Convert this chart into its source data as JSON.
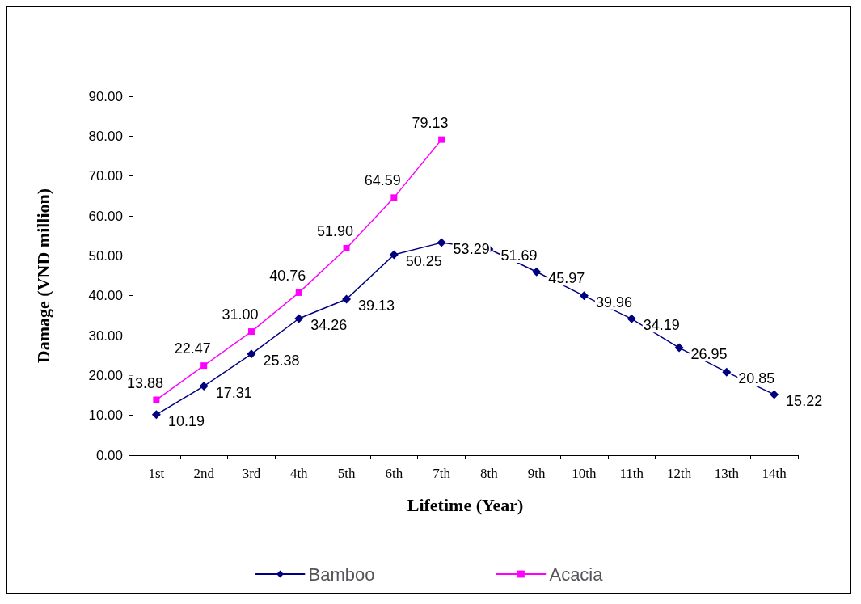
{
  "chart_data": {
    "type": "line",
    "xlabel": "Lifetime (Year)",
    "ylabel": "Damage (VND million)",
    "categories": [
      "1st",
      "2nd",
      "3rd",
      "4th",
      "5th",
      "6th",
      "7th",
      "8th",
      "9th",
      "10th",
      "11th",
      "12th",
      "13th",
      "14th"
    ],
    "series": [
      {
        "name": "Bamboo",
        "color": "#000080",
        "marker": "diamond",
        "values": [
          10.19,
          17.31,
          25.38,
          34.26,
          39.13,
          50.25,
          53.29,
          51.69,
          45.97,
          39.96,
          34.19,
          26.95,
          20.85,
          15.22
        ],
        "value_labels": [
          "10.19",
          "17.31",
          "25.38",
          "34.26",
          "39.13",
          "50.25",
          "53.29",
          "51.69",
          "45.97",
          "39.96",
          "34.19",
          "26.95",
          "20.85",
          "15.22"
        ]
      },
      {
        "name": "Acacia",
        "color": "#ff00ff",
        "marker": "square",
        "values": [
          13.88,
          22.47,
          31.0,
          40.76,
          51.9,
          64.59,
          79.13,
          null,
          null,
          null,
          null,
          null,
          null,
          null
        ],
        "value_labels": [
          "13.88",
          "22.47",
          "31.00",
          "40.76",
          "51.90",
          "64.59",
          "79.13",
          null,
          null,
          null,
          null,
          null,
          null,
          null
        ]
      }
    ],
    "ylim": [
      0,
      90
    ],
    "yticks": [
      {
        "value": 0,
        "label": "0.00"
      },
      {
        "value": 10,
        "label": "10.00"
      },
      {
        "value": 20,
        "label": "20.00"
      },
      {
        "value": 30,
        "label": "30.00"
      },
      {
        "value": 40,
        "label": "40.00"
      },
      {
        "value": 50,
        "label": "50.00"
      },
      {
        "value": 60,
        "label": "60.00"
      },
      {
        "value": 70,
        "label": "70.00"
      },
      {
        "value": 80,
        "label": "80.00"
      },
      {
        "value": 90,
        "label": "90.00"
      }
    ],
    "legend": "bottom",
    "grid": false,
    "line_style": "solid"
  }
}
